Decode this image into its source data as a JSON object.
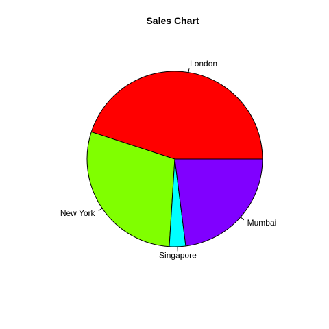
{
  "chart_data": {
    "type": "pie",
    "title": "Sales Chart",
    "slices": [
      {
        "label": "London",
        "value": 45,
        "color": "#FF0000"
      },
      {
        "label": "New York",
        "value": 29,
        "color": "#80FF00"
      },
      {
        "label": "Singapore",
        "value": 3,
        "color": "#00FFFF"
      },
      {
        "label": "Mumbai",
        "value": 23,
        "color": "#8000FF"
      }
    ],
    "start_angle_deg": 0,
    "direction": "counterclockwise"
  }
}
